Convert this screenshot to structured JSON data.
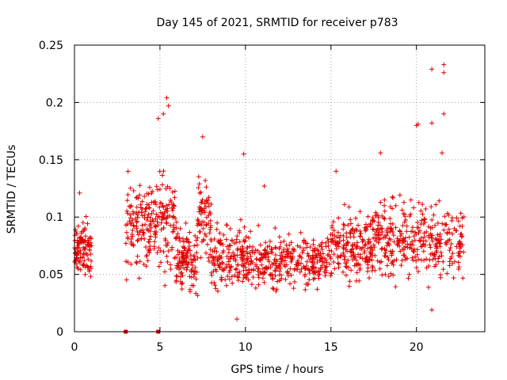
{
  "chart_data": {
    "type": "scatter",
    "title": "Day 145 of 2021, SRMTID for receiver p783",
    "xlabel": "GPS time / hours",
    "ylabel": "SRMTID / TECUs",
    "xlim": [
      0,
      24
    ],
    "ylim": [
      0,
      0.25
    ],
    "x_ticks": [
      0,
      5,
      10,
      15,
      20
    ],
    "x_tick_labels": [
      "0",
      "5",
      "10",
      "15",
      "20"
    ],
    "y_ticks": [
      0,
      0.05,
      0.1,
      0.15,
      0.2,
      0.25
    ],
    "y_tick_labels": [
      "0",
      "0.05",
      "0.1",
      "0.15",
      "0.2",
      "0.25"
    ],
    "grid": true,
    "marker": "+",
    "color": "#e00000",
    "series": [
      {
        "name": "SRMTID",
        "clusters": [
          {
            "x_range": [
              0.0,
              1.0
            ],
            "y_mean": 0.07,
            "y_spread": 0.015,
            "count": 110
          },
          {
            "x_range": [
              3.0,
              5.9
            ],
            "y_mean": 0.095,
            "y_spread": 0.03,
            "count": 230
          },
          {
            "x_range": [
              5.9,
              7.2
            ],
            "y_mean": 0.062,
            "y_spread": 0.018,
            "count": 120
          },
          {
            "x_range": [
              7.2,
              8.0
            ],
            "y_mean": 0.1,
            "y_spread": 0.025,
            "count": 70
          },
          {
            "x_range": [
              8.0,
              10.0
            ],
            "y_mean": 0.065,
            "y_spread": 0.018,
            "count": 150
          },
          {
            "x_range": [
              10.0,
              15.0
            ],
            "y_mean": 0.062,
            "y_spread": 0.016,
            "count": 330
          },
          {
            "x_range": [
              15.0,
              17.5
            ],
            "y_mean": 0.075,
            "y_spread": 0.02,
            "count": 190
          },
          {
            "x_range": [
              17.5,
              22.8
            ],
            "y_mean": 0.08,
            "y_spread": 0.022,
            "count": 340
          }
        ],
        "highlighted_points": [
          {
            "x": 0.3,
            "y": 0.121
          },
          {
            "x": 4.9,
            "y": 0.186
          },
          {
            "x": 5.4,
            "y": 0.204
          },
          {
            "x": 5.5,
            "y": 0.197
          },
          {
            "x": 5.2,
            "y": 0.19
          },
          {
            "x": 7.5,
            "y": 0.17
          },
          {
            "x": 9.9,
            "y": 0.155
          },
          {
            "x": 11.1,
            "y": 0.127
          },
          {
            "x": 9.5,
            "y": 0.011
          },
          {
            "x": 15.3,
            "y": 0.14
          },
          {
            "x": 17.9,
            "y": 0.156
          },
          {
            "x": 20.0,
            "y": 0.18
          },
          {
            "x": 20.1,
            "y": 0.181
          },
          {
            "x": 20.9,
            "y": 0.229
          },
          {
            "x": 21.6,
            "y": 0.233
          },
          {
            "x": 21.6,
            "y": 0.226
          },
          {
            "x": 21.6,
            "y": 0.19
          },
          {
            "x": 20.9,
            "y": 0.182
          },
          {
            "x": 21.5,
            "y": 0.156
          },
          {
            "x": 20.9,
            "y": 0.019
          }
        ],
        "zero_points": [
          {
            "x": 3.0,
            "y": 0.0
          },
          {
            "x": 4.9,
            "y": 0.0
          }
        ]
      }
    ]
  }
}
